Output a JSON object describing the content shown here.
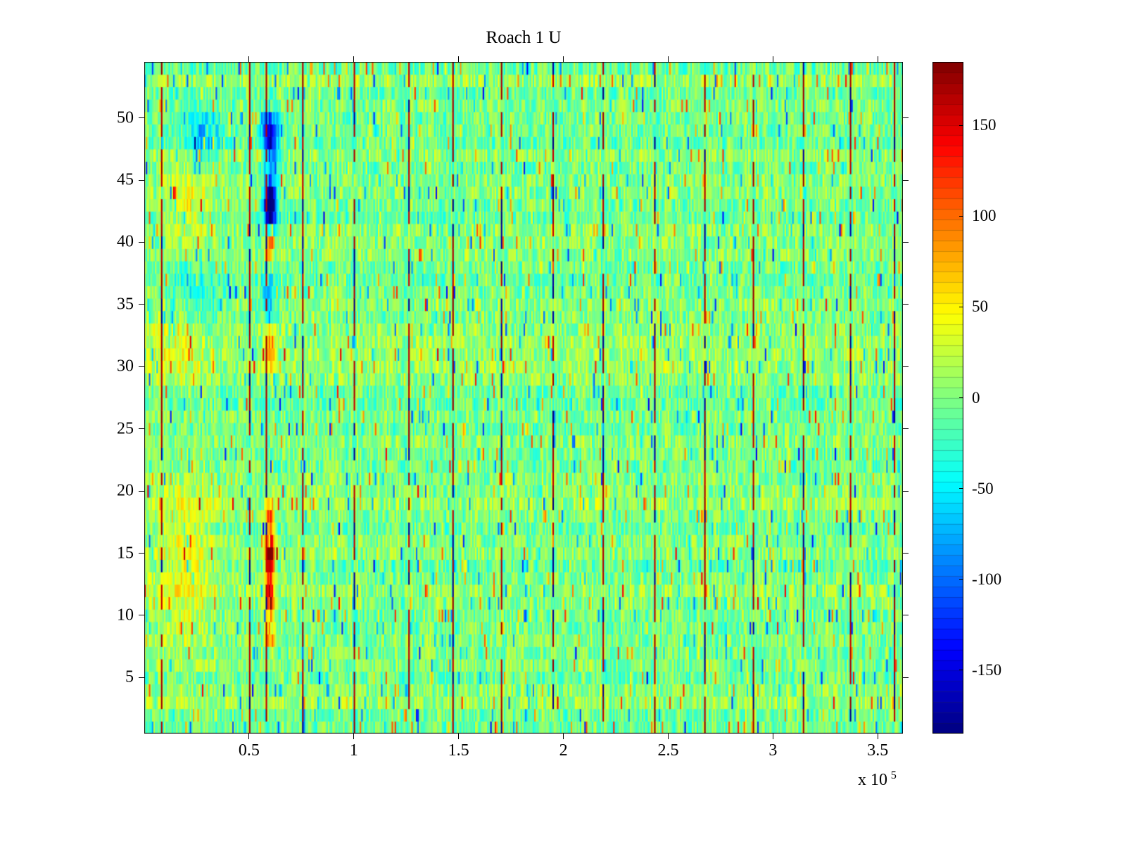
{
  "chart_data": {
    "type": "heatmap",
    "title": "Roach 1 U",
    "x_range": [
      0,
      362000
    ],
    "y_range": [
      0.5,
      54.5
    ],
    "x_ticks": [
      {
        "value": 50000,
        "label": "0.5"
      },
      {
        "value": 100000,
        "label": "1"
      },
      {
        "value": 150000,
        "label": "1.5"
      },
      {
        "value": 200000,
        "label": "2"
      },
      {
        "value": 250000,
        "label": "2.5"
      },
      {
        "value": 300000,
        "label": "3"
      },
      {
        "value": 350000,
        "label": "3.5"
      }
    ],
    "x_scale_label": {
      "prefix": "x 10",
      "exponent": "5"
    },
    "y_ticks": [
      {
        "value": 5,
        "label": "5"
      },
      {
        "value": 10,
        "label": "10"
      },
      {
        "value": 15,
        "label": "15"
      },
      {
        "value": 20,
        "label": "20"
      },
      {
        "value": 25,
        "label": "25"
      },
      {
        "value": 30,
        "label": "30"
      },
      {
        "value": 35,
        "label": "35"
      },
      {
        "value": 40,
        "label": "40"
      },
      {
        "value": 45,
        "label": "45"
      },
      {
        "value": 50,
        "label": "50"
      }
    ],
    "colormap": "jet",
    "clim": [
      -185,
      185
    ],
    "colorbar_ticks": [
      {
        "value": 150,
        "label": "150"
      },
      {
        "value": 100,
        "label": "100"
      },
      {
        "value": 50,
        "label": "50"
      },
      {
        "value": 0,
        "label": "0"
      },
      {
        "value": -50,
        "label": "-50"
      },
      {
        "value": -100,
        "label": "-100"
      },
      {
        "value": -150,
        "label": "-150"
      }
    ],
    "grid": {
      "nx": 500,
      "ny": 54
    },
    "noise": {
      "seed": 20240601,
      "base_amp": 32,
      "row_amp": 10,
      "col_amp": 8,
      "spike_prob": 0.06
    },
    "stripes": {
      "positions": [
        8000,
        50000,
        58000,
        75000,
        100000,
        126000,
        147000,
        170000,
        195000,
        219000,
        243000,
        267000,
        290000,
        314000,
        337000,
        358000
      ],
      "red_value": 178,
      "dark_value": -185
    },
    "features": [
      {
        "x": 60000,
        "y": 43,
        "sx": 2000,
        "sy": 1.3,
        "amp": -260
      },
      {
        "x": 60000,
        "y": 48.5,
        "sx": 2600,
        "sy": 1.6,
        "amp": -150
      },
      {
        "x": 59000,
        "y": 35.5,
        "sx": 2200,
        "sy": 1.1,
        "amp": -90
      },
      {
        "x": 60000,
        "y": 15,
        "sx": 1600,
        "sy": 1.1,
        "amp": 205
      },
      {
        "x": 60000,
        "y": 11.5,
        "sx": 1600,
        "sy": 1.5,
        "amp": 140
      },
      {
        "x": 60000,
        "y": 18,
        "sx": 1600,
        "sy": 0.9,
        "amp": 125
      },
      {
        "x": 60000,
        "y": 40,
        "sx": 1500,
        "sy": 0.8,
        "amp": 135
      },
      {
        "x": 60000,
        "y": 31.5,
        "sx": 1800,
        "sy": 1.4,
        "amp": 95
      },
      {
        "x": 60000,
        "y": 8,
        "sx": 1600,
        "sy": 0.8,
        "amp": 90
      },
      {
        "x": 20000,
        "y": 14,
        "sx": 12000,
        "sy": 5,
        "amp": 38
      },
      {
        "x": 22000,
        "y": 43.5,
        "sx": 9000,
        "sy": 2.2,
        "amp": 42
      },
      {
        "x": 15000,
        "y": 31.5,
        "sx": 9000,
        "sy": 2.2,
        "amp": 34
      },
      {
        "x": 28000,
        "y": 48.5,
        "sx": 6000,
        "sy": 1.4,
        "amp": -70
      },
      {
        "x": 24000,
        "y": 36,
        "sx": 8000,
        "sy": 1.4,
        "amp": -40
      }
    ]
  }
}
